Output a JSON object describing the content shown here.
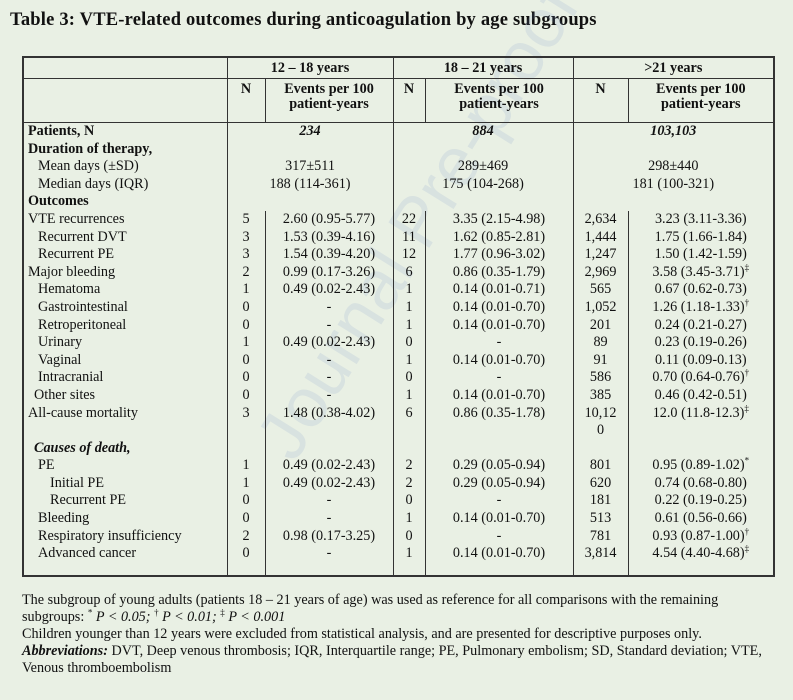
{
  "title": "Table 3: VTE-related outcomes during anticoagulation by age subgroups",
  "watermark": "Journal Pre-proof",
  "groups": [
    "12 – 18 years",
    "18 – 21 years",
    ">21 years"
  ],
  "col_n": "N",
  "col_events_1": "Events per 100",
  "col_events_2": "patient-years",
  "patients": {
    "label": "Patients, N",
    "g1": "234",
    "g2": "884",
    "g3": "103,103"
  },
  "duration": {
    "label": "Duration of therapy,"
  },
  "mean": {
    "label": "Mean days (±SD)",
    "g1": "317±511",
    "g2": "289±469",
    "g3": "298±440"
  },
  "median": {
    "label": "Median days (IQR)",
    "g1": "188 (114-361)",
    "g2": "175 (104-268)",
    "g3": "181 (100-321)"
  },
  "outcomes_label": "Outcomes",
  "rows": [
    {
      "label": "VTE recurrences",
      "n1": "5",
      "e1": "2.60 (0.95-5.77)",
      "n2": "22",
      "e2": "3.35 (2.15-4.98)",
      "n3": "2,634",
      "e3": "3.23 (3.11-3.36)",
      "sup": ""
    },
    {
      "label": "Recurrent DVT",
      "n1": "3",
      "e1": "1.53 (0.39-4.16)",
      "n2": "11",
      "e2": "1.62 (0.85-2.81)",
      "n3": "1,444",
      "e3": "1.75 (1.66-1.84)",
      "sup": ""
    },
    {
      "label": "Recurrent PE",
      "n1": "3",
      "e1": "1.54 (0.39-4.20)",
      "n2": "12",
      "e2": "1.77 (0.96-3.02)",
      "n3": "1,247",
      "e3": "1.50 (1.42-1.59)",
      "sup": ""
    },
    {
      "label": "Major bleeding",
      "n1": "2",
      "e1": "0.99 (0.17-3.26)",
      "n2": "6",
      "e2": "0.86 (0.35-1.79)",
      "n3": "2,969",
      "e3": "3.58 (3.45-3.71)",
      "sup": "‡"
    },
    {
      "label": "Hematoma",
      "n1": "1",
      "e1": "0.49 (0.02-2.43)",
      "n2": "1",
      "e2": "0.14 (0.01-0.71)",
      "n3": "565",
      "e3": "0.67 (0.62-0.73)",
      "sup": ""
    },
    {
      "label": "Gastrointestinal",
      "n1": "0",
      "e1": "-",
      "n2": "1",
      "e2": "0.14 (0.01-0.70)",
      "n3": "1,052",
      "e3": "1.26 (1.18-1.33)",
      "sup": "†"
    },
    {
      "label": "Retroperitoneal",
      "n1": "0",
      "e1": "-",
      "n2": "1",
      "e2": "0.14 (0.01-0.70)",
      "n3": "201",
      "e3": "0.24 (0.21-0.27)",
      "sup": ""
    },
    {
      "label": "Urinary",
      "n1": "1",
      "e1": "0.49 (0.02-2.43)",
      "n2": "0",
      "e2": "-",
      "n3": "89",
      "e3": "0.23 (0.19-0.26)",
      "sup": ""
    },
    {
      "label": "Vaginal",
      "n1": "0",
      "e1": "-",
      "n2": "1",
      "e2": "0.14 (0.01-0.70)",
      "n3": "91",
      "e3": "0.11 (0.09-0.13)",
      "sup": ""
    },
    {
      "label": "Intracranial",
      "n1": "0",
      "e1": "-",
      "n2": "0",
      "e2": "-",
      "n3": "586",
      "e3": "0.70 (0.64-0.76)",
      "sup": "†"
    },
    {
      "label": "Other sites",
      "n1": "0",
      "e1": "-",
      "n2": "1",
      "e2": "0.14 (0.01-0.70)",
      "n3": "385",
      "e3": "0.46 (0.42-0.51)",
      "sup": ""
    },
    {
      "label": "All-cause mortality",
      "n1": "3",
      "e1": "1.48 (0.38-4.02)",
      "n2": "6",
      "e2": "0.86 (0.35-1.78)",
      "n3": "10,12",
      "e3": "12.0 (11.8-12.3)",
      "sup": "‡"
    }
  ],
  "mortality_n3_cont": "0",
  "causes_label": "Causes of death,",
  "causes": [
    {
      "label": "PE",
      "n1": "1",
      "e1": "0.49 (0.02-2.43)",
      "n2": "2",
      "e2": "0.29 (0.05-0.94)",
      "n3": "801",
      "e3": "0.95 (0.89-1.02)",
      "sup": "*"
    },
    {
      "label": "Initial PE",
      "n1": "1",
      "e1": "0.49 (0.02-2.43)",
      "n2": "2",
      "e2": "0.29 (0.05-0.94)",
      "n3": "620",
      "e3": "0.74 (0.68-0.80)",
      "sup": ""
    },
    {
      "label": "Recurrent PE",
      "n1": "0",
      "e1": "-",
      "n2": "0",
      "e2": "-",
      "n3": "181",
      "e3": "0.22 (0.19-0.25)",
      "sup": ""
    },
    {
      "label": "Bleeding",
      "n1": "0",
      "e1": "-",
      "n2": "1",
      "e2": "0.14 (0.01-0.70)",
      "n3": "513",
      "e3": "0.61 (0.56-0.66)",
      "sup": ""
    },
    {
      "label": "Respiratory insufficiency",
      "n1": "2",
      "e1": "0.98 (0.17-3.25)",
      "n2": "0",
      "e2": "-",
      "n3": "781",
      "e3": "0.93 (0.87-1.00)",
      "sup": "†"
    },
    {
      "label": "Advanced cancer",
      "n1": "0",
      "e1": "-",
      "n2": "1",
      "e2": "0.14 (0.01-0.70)",
      "n3": "3,814",
      "e3": "4.54 (4.40-4.68)",
      "sup": "‡"
    }
  ],
  "footer": {
    "note1_a": "The subgroup of young adults (patients 18 – 21 years of age) was used as reference for all comparisons with the remaining subgroups: ",
    "sym_star": "*",
    "p1": "P < 0.05; ",
    "sym_dagger": "†",
    "p2": "P < 0.01; ",
    "sym_ddagger": "‡",
    "p3": "P < 0.001",
    "note2": "Children younger than 12 years were excluded from statistical analysis, and are presented for descriptive purposes only.",
    "abbr_label": "Abbreviations:",
    "abbr_text": " DVT, Deep venous thrombosis; IQR, Interquartile range; PE, Pulmonary embolism; SD, Standard deviation; VTE, Venous thromboembolism"
  }
}
